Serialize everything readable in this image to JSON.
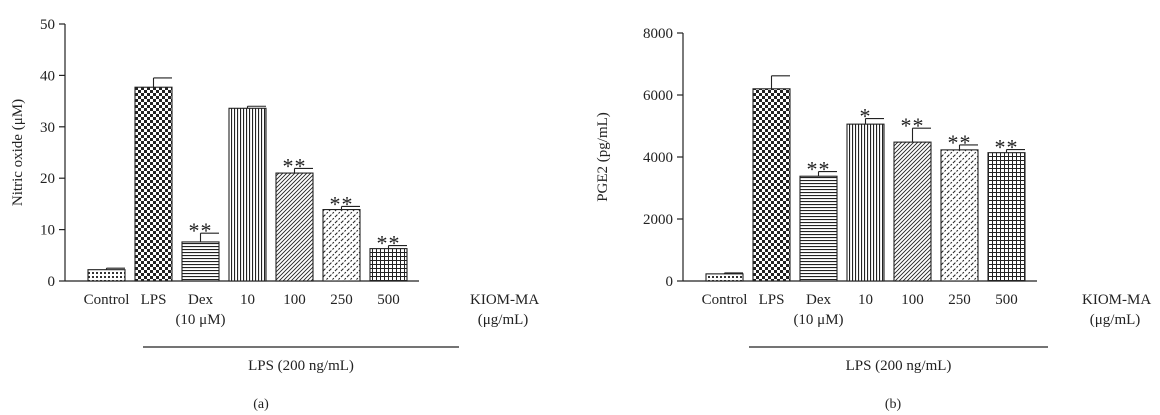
{
  "chart_data": [
    {
      "type": "bar",
      "panel_label": "(a)",
      "ylabel": "Nitric oxide (μM)",
      "ylim": [
        0,
        50
      ],
      "yticks": [
        "0",
        "10",
        "20",
        "30",
        "40",
        "50"
      ],
      "categories": [
        "Control",
        "LPS",
        "Dex",
        "10",
        "100",
        "250",
        "500"
      ],
      "category_sublabels": [
        "",
        "",
        "(10 μM)",
        "",
        "",
        "",
        ""
      ],
      "values": [
        2.2,
        37.7,
        7.6,
        33.6,
        21.0,
        13.9,
        6.3
      ],
      "errors": [
        0.3,
        1.8,
        1.7,
        0.4,
        0.9,
        0.6,
        0.6
      ],
      "significance": [
        "",
        "",
        "**",
        "",
        "**",
        "**",
        "**"
      ],
      "patterns": [
        "dots",
        "checker",
        "hlines",
        "vlines",
        "diagfine",
        "diagdash",
        "grid"
      ],
      "group_label": "KIOM-MA",
      "group_unit": "(μg/mL)",
      "bracket_label": "LPS (200 ng/mL)"
    },
    {
      "type": "bar",
      "panel_label": "(b)",
      "ylabel": "PGE2 (pg/mL)",
      "ylim": [
        0,
        8000
      ],
      "yticks": [
        "0",
        "2000",
        "4000",
        "6000",
        "8000"
      ],
      "categories": [
        "Control",
        "LPS",
        "Dex",
        "10",
        "100",
        "250",
        "500"
      ],
      "category_sublabels": [
        "",
        "",
        "(10 μM)",
        "",
        "",
        "",
        ""
      ],
      "values": [
        230,
        6200,
        3380,
        5060,
        4480,
        4230,
        4140
      ],
      "errors": [
        30,
        420,
        150,
        180,
        450,
        160,
        100
      ],
      "significance": [
        "",
        "",
        "**",
        "*",
        "**",
        "**",
        "**"
      ],
      "patterns": [
        "dots",
        "checker",
        "hlines",
        "vlines",
        "diagfine",
        "diagdash",
        "grid"
      ],
      "group_label": "KIOM-MA",
      "group_unit": "(μg/mL)",
      "bracket_label": "LPS (200 ng/mL)"
    }
  ]
}
